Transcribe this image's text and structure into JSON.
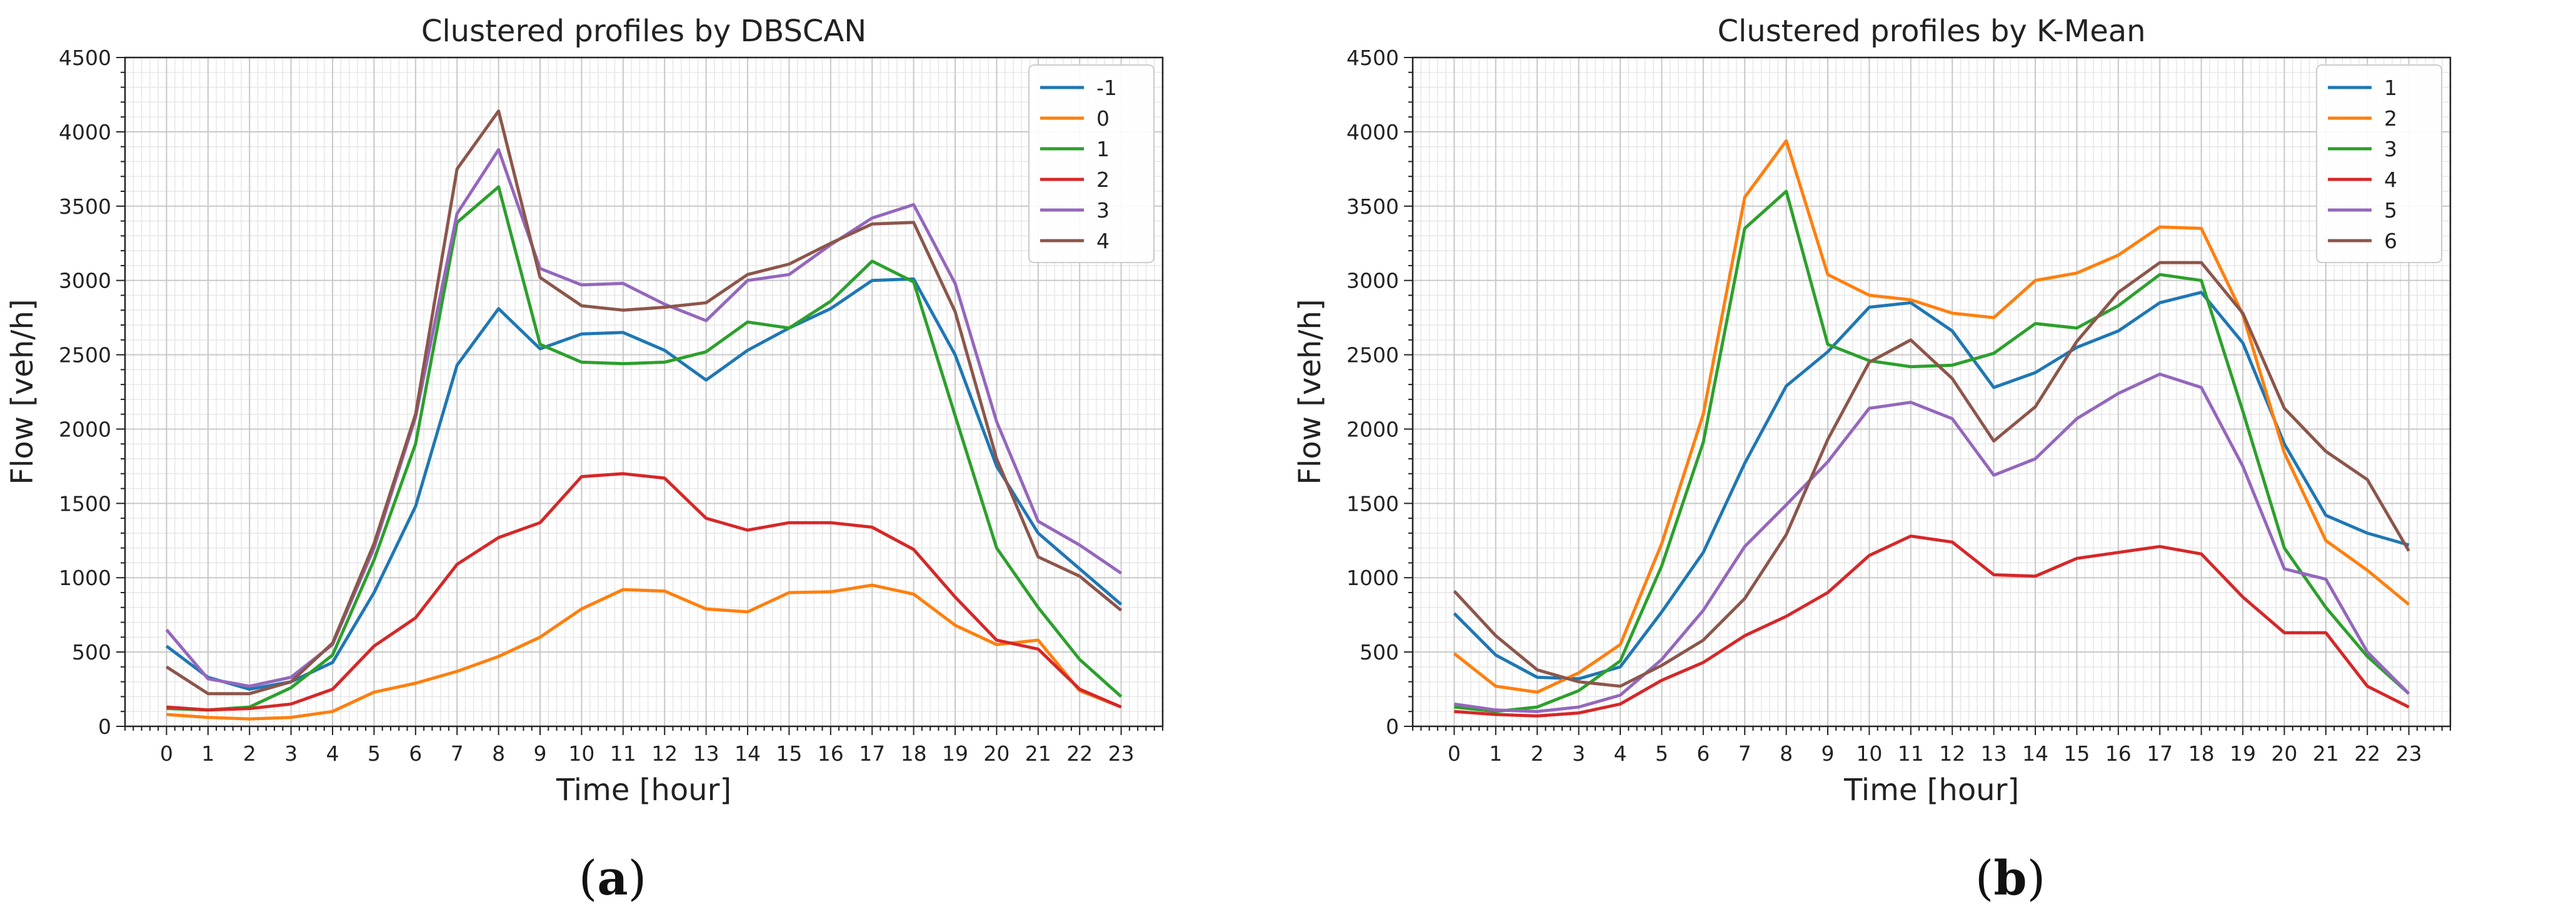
{
  "figure": {
    "captions": [
      {
        "open": "(",
        "letter": "a",
        "close": ")"
      },
      {
        "open": "(",
        "letter": "b",
        "close": ")"
      }
    ]
  },
  "chart_data": [
    {
      "type": "line",
      "title": "Clustered profiles by DBSCAN",
      "xlabel": "Time [hour]",
      "ylabel": "Flow [veh/h]",
      "xlim": [
        -1,
        24
      ],
      "ylim": [
        0,
        4500
      ],
      "x": [
        0,
        1,
        2,
        3,
        4,
        5,
        6,
        7,
        8,
        9,
        10,
        11,
        12,
        13,
        14,
        15,
        16,
        17,
        18,
        19,
        20,
        21,
        22,
        23
      ],
      "yticks": [
        0,
        500,
        1000,
        1500,
        2000,
        2500,
        3000,
        3500,
        4000,
        4500
      ],
      "grid": true,
      "legend_position": "top-right",
      "series": [
        {
          "name": "-1",
          "color": "#1f77b4",
          "values": [
            540,
            330,
            250,
            300,
            430,
            900,
            1480,
            2430,
            2810,
            2540,
            2640,
            2650,
            2530,
            2330,
            2530,
            2680,
            2810,
            3000,
            3010,
            2500,
            1750,
            1300,
            1060,
            820
          ]
        },
        {
          "name": "0",
          "color": "#ff7f0e",
          "values": [
            80,
            60,
            50,
            60,
            100,
            230,
            290,
            370,
            470,
            600,
            790,
            920,
            910,
            790,
            770,
            900,
            905,
            950,
            890,
            680,
            550,
            580,
            240,
            130
          ]
        },
        {
          "name": "1",
          "color": "#2ca02c",
          "values": [
            120,
            110,
            130,
            260,
            480,
            1120,
            1900,
            3390,
            3630,
            2570,
            2450,
            2440,
            2450,
            2520,
            2720,
            2680,
            2860,
            3130,
            2990,
            2090,
            1200,
            800,
            450,
            200
          ]
        },
        {
          "name": "2",
          "color": "#d62728",
          "values": [
            130,
            110,
            120,
            150,
            250,
            540,
            730,
            1090,
            1270,
            1370,
            1680,
            1700,
            1670,
            1400,
            1320,
            1370,
            1370,
            1340,
            1190,
            870,
            580,
            520,
            250,
            130
          ]
        },
        {
          "name": "3",
          "color": "#9467bd",
          "values": [
            650,
            320,
            270,
            330,
            550,
            1200,
            2080,
            3450,
            3880,
            3080,
            2970,
            2980,
            2840,
            2730,
            3000,
            3040,
            3240,
            3420,
            3510,
            2980,
            2050,
            1380,
            1220,
            1030
          ]
        },
        {
          "name": "4",
          "color": "#8c564b",
          "values": [
            400,
            220,
            220,
            300,
            560,
            1230,
            2100,
            3750,
            4140,
            3020,
            2830,
            2800,
            2820,
            2850,
            3040,
            3110,
            3250,
            3380,
            3390,
            2790,
            1800,
            1140,
            1010,
            780
          ]
        }
      ]
    },
    {
      "type": "line",
      "title": "Clustered profiles by K-Mean",
      "xlabel": "Time [hour]",
      "ylabel": "Flow [veh/h]",
      "xlim": [
        -1,
        24
      ],
      "ylim": [
        0,
        4500
      ],
      "x": [
        0,
        1,
        2,
        3,
        4,
        5,
        6,
        7,
        8,
        9,
        10,
        11,
        12,
        13,
        14,
        15,
        16,
        17,
        18,
        19,
        20,
        21,
        22,
        23
      ],
      "yticks": [
        0,
        500,
        1000,
        1500,
        2000,
        2500,
        3000,
        3500,
        4000,
        4500
      ],
      "grid": true,
      "legend_position": "top-right",
      "series": [
        {
          "name": "1",
          "color": "#1f77b4",
          "values": [
            760,
            480,
            330,
            320,
            400,
            770,
            1170,
            1770,
            2290,
            2520,
            2820,
            2850,
            2660,
            2280,
            2380,
            2550,
            2660,
            2850,
            2920,
            2580,
            1900,
            1420,
            1300,
            1220
          ]
        },
        {
          "name": "2",
          "color": "#ff7f0e",
          "values": [
            490,
            270,
            230,
            360,
            550,
            1230,
            2100,
            3560,
            3940,
            3040,
            2900,
            2870,
            2780,
            2750,
            3000,
            3050,
            3170,
            3360,
            3350,
            2770,
            1840,
            1250,
            1050,
            820
          ]
        },
        {
          "name": "3",
          "color": "#2ca02c",
          "values": [
            130,
            100,
            130,
            240,
            440,
            1080,
            1910,
            3350,
            3600,
            2570,
            2460,
            2420,
            2430,
            2510,
            2710,
            2680,
            2830,
            3040,
            3000,
            2120,
            1200,
            800,
            470,
            220
          ]
        },
        {
          "name": "4",
          "color": "#d62728",
          "values": [
            100,
            80,
            70,
            90,
            150,
            310,
            430,
            610,
            740,
            900,
            1150,
            1280,
            1240,
            1020,
            1010,
            1130,
            1170,
            1210,
            1160,
            870,
            630,
            630,
            270,
            130
          ]
        },
        {
          "name": "5",
          "color": "#9467bd",
          "values": [
            150,
            110,
            100,
            130,
            210,
            450,
            780,
            1210,
            1490,
            1780,
            2140,
            2180,
            2070,
            1690,
            1800,
            2070,
            2240,
            2370,
            2280,
            1750,
            1060,
            990,
            500,
            220
          ]
        },
        {
          "name": "6",
          "color": "#8c564b",
          "values": [
            910,
            610,
            380,
            300,
            270,
            410,
            580,
            860,
            1290,
            1930,
            2450,
            2600,
            2340,
            1920,
            2150,
            2590,
            2920,
            3120,
            3120,
            2780,
            2140,
            1850,
            1660,
            1180
          ]
        }
      ]
    }
  ]
}
